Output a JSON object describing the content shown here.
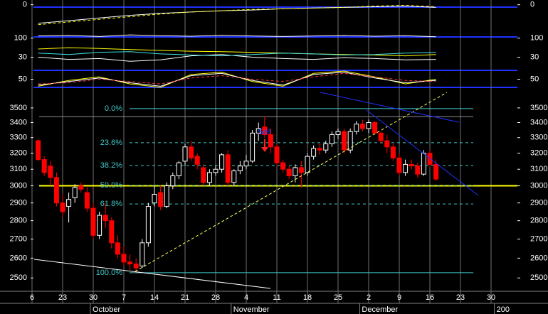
{
  "chart_data": [
    {
      "type": "candlestick",
      "categories": [
        "6",
        null,
        null,
        null,
        null,
        "23",
        null,
        null,
        null,
        null,
        "30",
        null,
        null,
        null,
        null,
        "7",
        null,
        null,
        null,
        null,
        "14",
        null,
        null,
        null,
        null,
        "21",
        null,
        null,
        null,
        null,
        "28",
        null,
        null,
        null,
        null,
        "4",
        null,
        null,
        null,
        null,
        "11",
        null,
        null,
        null,
        null,
        "18",
        null,
        null,
        null,
        null,
        "25",
        null,
        null,
        null,
        null,
        "2",
        null,
        null,
        null,
        null,
        "9",
        null,
        null,
        null,
        null,
        "16",
        null,
        null,
        null,
        null,
        "23",
        null,
        null,
        null,
        null,
        "30",
        null,
        null,
        null,
        null
      ],
      "month_labels": [
        null,
        null,
        null,
        null,
        null,
        null,
        null,
        null,
        null,
        null,
        "October",
        null,
        null,
        null,
        null,
        null,
        null,
        null,
        null,
        null,
        null,
        null,
        null,
        null,
        null,
        null,
        null,
        null,
        null,
        null,
        null,
        null,
        null,
        "November",
        null,
        null,
        null,
        null,
        null,
        null,
        null,
        null,
        null,
        null,
        null,
        null,
        null,
        null,
        null,
        null,
        null,
        null,
        null,
        null,
        "December",
        null,
        null,
        null,
        null,
        null,
        null,
        null,
        null,
        null,
        null,
        null,
        null,
        null,
        null,
        null,
        null,
        null,
        null,
        null,
        null,
        null,
        "200",
        null,
        null,
        null
      ],
      "open": [
        null,
        3280,
        3160,
        3120,
        3050,
        2900,
        2880,
        2930,
        3000,
        2960,
        2870,
        2720,
        2830,
        2800,
        2680,
        2620,
        2580,
        2570,
        2560,
        2680,
        2900,
        2960,
        2880,
        3000,
        3060,
        3150,
        3240,
        3180,
        3110,
        3020,
        3080,
        3100,
        3190,
        3020,
        3090,
        3120,
        3150,
        3330,
        3370,
        3320,
        3240,
        3140,
        3100,
        3060,
        3110,
        3080,
        3180,
        3230,
        3220,
        3260,
        3320,
        3340,
        3220,
        3340,
        3390,
        3360,
        3400,
        3330,
        3280,
        3240,
        3170,
        3080,
        3130,
        3120,
        3070,
        3200,
        3130,
        null,
        null,
        null,
        null,
        null,
        null,
        null,
        null,
        null,
        null,
        null,
        null,
        null
      ],
      "high": [
        null,
        3290,
        3180,
        3150,
        3080,
        2950,
        2960,
        3010,
        3020,
        2990,
        2900,
        2850,
        2900,
        2820,
        2720,
        2660,
        2620,
        2600,
        2700,
        2900,
        3000,
        3000,
        3020,
        3080,
        3150,
        3260,
        3280,
        3200,
        3130,
        3100,
        3120,
        3200,
        3220,
        3100,
        3150,
        3190,
        3350,
        3400,
        3440,
        3360,
        3260,
        3160,
        3120,
        3130,
        3150,
        3200,
        3250,
        3260,
        3280,
        3340,
        3360,
        3360,
        3360,
        3410,
        3420,
        3420,
        3410,
        3340,
        3320,
        3260,
        3200,
        3160,
        3160,
        3140,
        3220,
        3220,
        3160,
        null,
        null,
        null,
        null,
        null,
        null,
        null,
        null,
        null,
        null,
        null,
        null,
        null
      ],
      "low": [
        null,
        3150,
        3060,
        3000,
        2880,
        2820,
        2790,
        2900,
        2960,
        2850,
        2700,
        2700,
        2760,
        2650,
        2600,
        2560,
        2540,
        2520,
        2550,
        2660,
        2880,
        2860,
        2870,
        2980,
        3040,
        3120,
        3150,
        3100,
        3000,
        3000,
        3060,
        3080,
        3000,
        3000,
        3070,
        3100,
        3140,
        3280,
        3300,
        3200,
        3120,
        3080,
        3040,
        3020,
        2990,
        3060,
        3160,
        3190,
        3200,
        3240,
        3290,
        3200,
        3200,
        3320,
        3340,
        3330,
        3320,
        3260,
        3200,
        3150,
        3060,
        3060,
        3100,
        3050,
        3060,
        3110,
        3030,
        null,
        null,
        null,
        null,
        null,
        null,
        null,
        null,
        null,
        null,
        null,
        null,
        null
      ],
      "close": [
        null,
        3160,
        3080,
        3050,
        2900,
        2850,
        2920,
        2990,
        2980,
        2870,
        2720,
        2830,
        2800,
        2680,
        2620,
        2580,
        2570,
        2550,
        2680,
        2880,
        2950,
        2880,
        3000,
        3060,
        3140,
        3240,
        3170,
        3130,
        3020,
        3080,
        3100,
        3190,
        3020,
        3090,
        3120,
        3150,
        3330,
        3360,
        3320,
        3240,
        3140,
        3100,
        3060,
        3110,
        3080,
        3180,
        3230,
        3220,
        3260,
        3320,
        3340,
        3220,
        3340,
        3390,
        3360,
        3400,
        3330,
        3280,
        3240,
        3170,
        3080,
        3130,
        3120,
        3070,
        3200,
        3130,
        3040,
        null,
        null,
        null,
        null,
        null,
        null,
        null,
        null,
        null,
        null,
        null,
        null,
        null
      ],
      "up_color": "#ffffff",
      "down_color": "#ff0000",
      "log_scale": true,
      "ylim": [
        2435,
        3559
      ],
      "yticks": [
        2500,
        2600,
        2700,
        2800,
        2900,
        3000,
        3100,
        3200,
        3300,
        3400,
        3500
      ],
      "fib_levels": [
        {
          "value": 3495,
          "label": "0.0%",
          "dashed": false
        },
        {
          "value": 3267,
          "label": "23.6%",
          "dashed": true
        },
        {
          "value": 3123,
          "label": "38.2%",
          "dashed": true
        },
        {
          "value": 3002,
          "label": "50.0%",
          "dashed": true
        },
        {
          "value": 2894,
          "label": "61.8%",
          "dashed": true
        },
        {
          "value": 2526,
          "label": "100.0%",
          "dashed": false
        }
      ],
      "fib_color": "#40c8c8",
      "levels": [
        {
          "value": 3440,
          "color": "#909090"
        },
        {
          "value": 3000,
          "color": "#ffff00"
        }
      ],
      "annotation": "Sell"
    },
    {
      "type": "line",
      "categories": [
        "6",
        "23",
        "30",
        "7",
        "14",
        "21",
        "28",
        "4",
        "11",
        "18",
        "25",
        "2",
        "9",
        "16",
        "23",
        "30"
      ],
      "ylim": [
        -40,
        5
      ],
      "yticks": [
        0
      ],
      "series": [
        {
          "color": "#ffffff",
          "dashed": false,
          "values": [
            -28,
            -24,
            -20,
            -16,
            -13,
            -11,
            -9,
            -8,
            -6,
            -5,
            -4,
            -3,
            -2,
            -4,
            null,
            null
          ]
        },
        {
          "color": "#ffff00",
          "dashed": true,
          "values": [
            -30,
            -26,
            -22,
            -18,
            -14,
            -11,
            -9,
            -7,
            -6,
            -5,
            -4,
            -2,
            -1,
            -3,
            null,
            null
          ]
        }
      ]
    },
    {
      "type": "line",
      "categories": [
        "6",
        "23",
        "30",
        "7",
        "14",
        "21",
        "28",
        "4",
        "11",
        "18",
        "25",
        "2",
        "9",
        "16",
        "23",
        "30"
      ],
      "ylim": [
        0,
        120
      ],
      "yticks": [
        100,
        30
      ],
      "series": [
        {
          "color": "#ffffff",
          "dashed": false,
          "values": [
            108,
            110,
            106,
            112,
            109,
            107,
            111,
            108,
            106,
            108,
            110,
            107,
            109,
            105,
            null,
            null
          ]
        },
        {
          "color": "#ffffff",
          "dashed": false,
          "values": [
            30,
            22,
            25,
            15,
            20,
            35,
            40,
            30,
            25,
            22,
            28,
            25,
            20,
            22,
            null,
            null
          ]
        },
        {
          "color": "#ffff00",
          "dashed": false,
          "values": [
            60,
            65,
            62,
            58,
            55,
            52,
            50,
            48,
            45,
            42,
            40,
            38,
            35,
            40,
            null,
            null
          ]
        },
        {
          "color": "#40e0e0",
          "dashed": false,
          "values": [
            45,
            40,
            48,
            50,
            42,
            38,
            35,
            40,
            45,
            42,
            38,
            40,
            45,
            48,
            null,
            null
          ]
        }
      ]
    },
    {
      "type": "line",
      "categories": [
        "6",
        "23",
        "30",
        "7",
        "14",
        "21",
        "28",
        "4",
        "11",
        "18",
        "25",
        "2",
        "9",
        "16",
        "23",
        "30"
      ],
      "ylim": [
        0,
        100
      ],
      "yticks": [
        50
      ],
      "series": [
        {
          "color": "#ffff00",
          "dashed": false,
          "values": [
            20,
            45,
            60,
            30,
            15,
            70,
            80,
            40,
            20,
            75,
            85,
            60,
            30,
            50,
            null,
            null
          ]
        },
        {
          "color": "#ffffff",
          "dashed": false,
          "values": [
            25,
            40,
            55,
            35,
            20,
            65,
            75,
            45,
            25,
            70,
            80,
            55,
            35,
            45,
            null,
            null
          ]
        },
        {
          "color": "#ff3030",
          "dashed": true,
          "values": [
            30,
            35,
            50,
            40,
            30,
            55,
            65,
            50,
            40,
            60,
            75,
            60,
            45,
            40,
            null,
            null
          ]
        }
      ]
    }
  ]
}
